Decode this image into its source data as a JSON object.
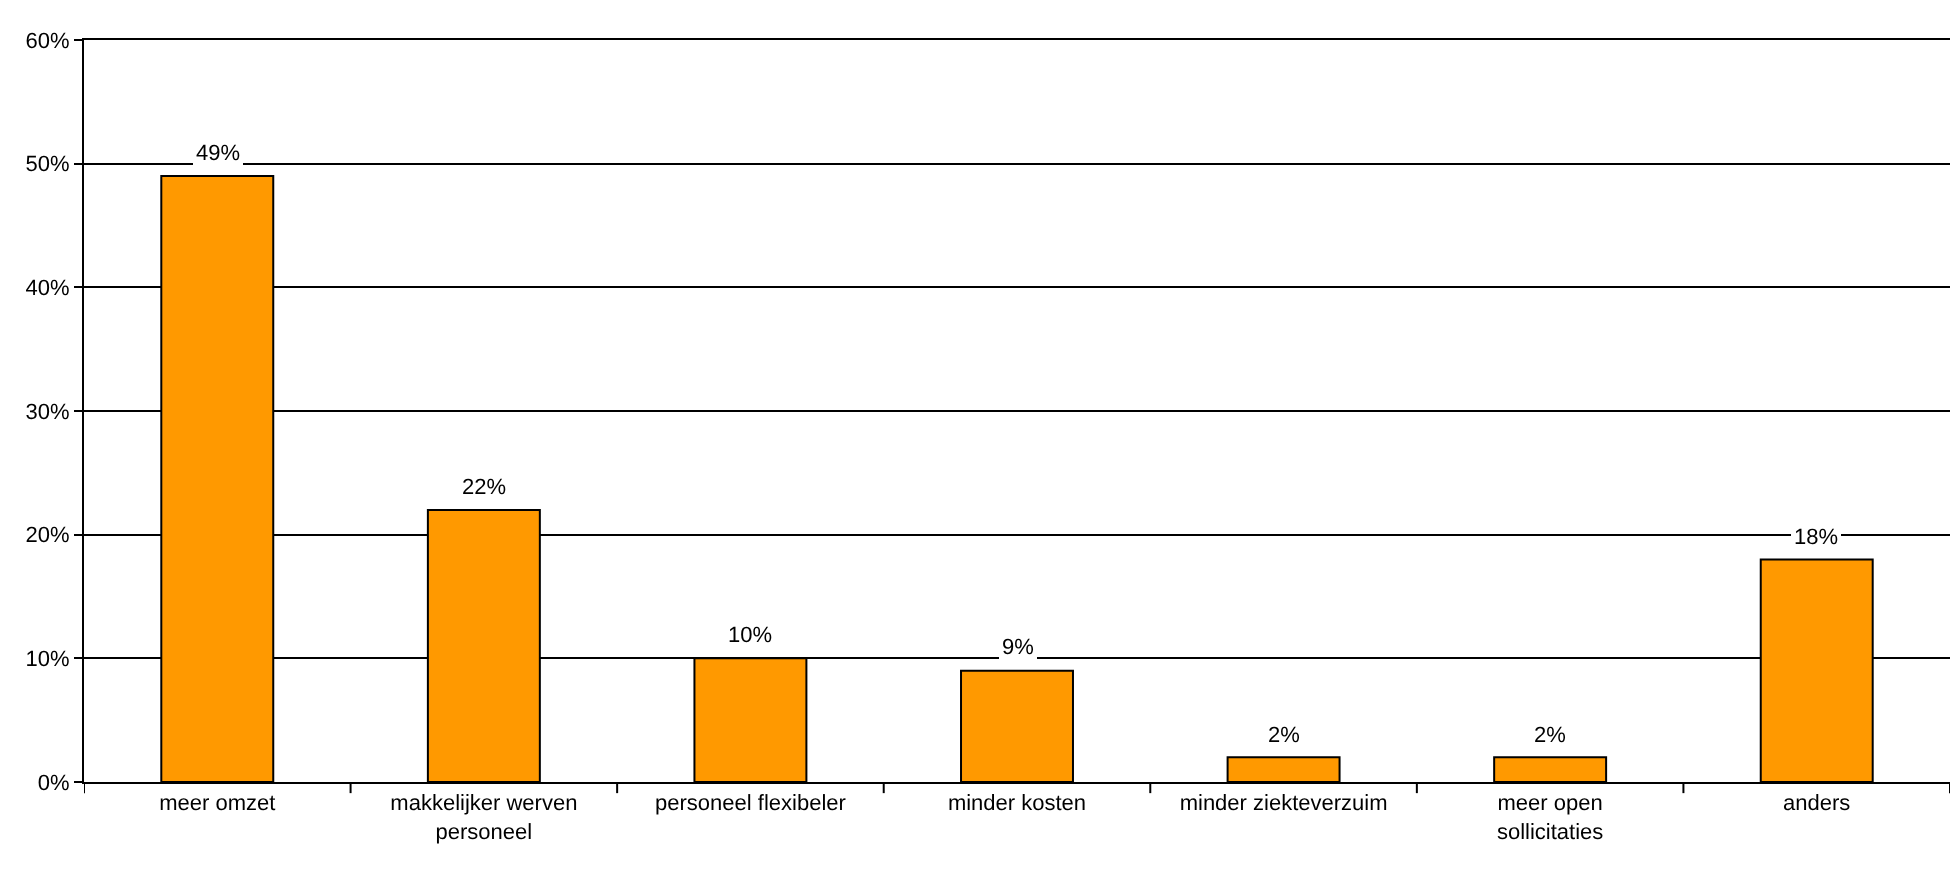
{
  "chart_data": {
    "type": "bar",
    "categories": [
      "meer omzet",
      "makkelijker werven personeel",
      "personeel flexibeler",
      "minder kosten",
      "minder ziekteverzuim",
      "meer open sollicitaties",
      "anders"
    ],
    "values": [
      49,
      22,
      10,
      9,
      2,
      2,
      18
    ],
    "value_labels": [
      "49%",
      "22%",
      "10%",
      "9%",
      "2%",
      "2%",
      "18%"
    ],
    "color": "#ff9900",
    "ylim": [
      0,
      60
    ],
    "yticks": [
      {
        "value": 0,
        "label": "0%"
      },
      {
        "value": 10,
        "label": "10%"
      },
      {
        "value": 20,
        "label": "20%"
      },
      {
        "value": 30,
        "label": "30%"
      },
      {
        "value": 40,
        "label": "40%"
      },
      {
        "value": 50,
        "label": "50%"
      },
      {
        "value": 60,
        "label": "60%"
      }
    ],
    "grid": "y",
    "legend": false
  }
}
